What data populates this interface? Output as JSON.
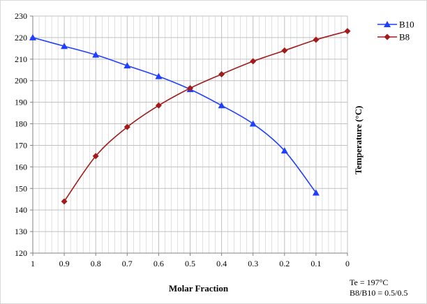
{
  "colors": {
    "B10": "#1f3fff",
    "B8": "#a31a1a",
    "grid": "#c0c0c0"
  },
  "chart_data": {
    "type": "line",
    "xlabel": "Molar Fraction",
    "ylabel": "Temperature (°C)",
    "xlim": [
      1,
      0
    ],
    "ylim": [
      120,
      230
    ],
    "x_ticks": [
      1,
      0.9,
      0.8,
      0.7,
      0.6,
      0.5,
      0.4,
      0.3,
      0.2,
      0.1,
      0
    ],
    "x_tick_labels": [
      "1",
      "0.9",
      "0.8",
      "0.7",
      "0.6",
      "0.5",
      "0.4",
      "0.3",
      "0.2",
      "0.1",
      "0"
    ],
    "y_ticks": [
      120,
      130,
      140,
      150,
      160,
      170,
      180,
      190,
      200,
      210,
      220,
      230
    ],
    "grid": true,
    "legend_position": "top-right",
    "series": [
      {
        "name": "B10",
        "marker": "triangle",
        "x": [
          1,
          0.9,
          0.8,
          0.7,
          0.6,
          0.5,
          0.4,
          0.3,
          0.2,
          0.1
        ],
        "y": [
          220,
          216,
          212,
          207,
          202,
          196,
          188.5,
          180,
          167.5,
          148
        ]
      },
      {
        "name": "B8",
        "marker": "diamond",
        "x": [
          0.9,
          0.8,
          0.7,
          0.6,
          0.5,
          0.4,
          0.3,
          0.2,
          0.1,
          0
        ],
        "y": [
          144,
          165,
          178.5,
          188.5,
          196.5,
          203,
          209,
          214,
          219,
          223
        ]
      }
    ],
    "annotations": [
      "Te = 197°C",
      "B8/B10 = 0.5/0.5"
    ]
  }
}
